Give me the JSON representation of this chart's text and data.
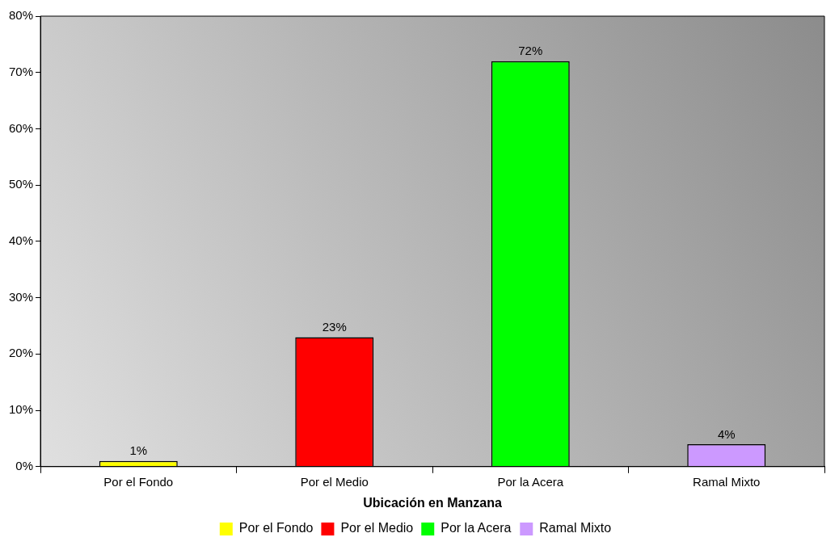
{
  "chart_data": {
    "type": "bar",
    "xlabel": "Ubicación en Manzana",
    "categories": [
      "Por el Fondo",
      "Por el Medio",
      "Por la Acera",
      "Ramal Mixto"
    ],
    "series": [
      {
        "name": "Por el Fondo",
        "color": "#ffff00",
        "values": [
          1,
          null,
          null,
          null
        ],
        "value_labels": [
          "1%",
          null,
          null,
          null
        ]
      },
      {
        "name": "Por el Medio",
        "color": "#ff0000",
        "values": [
          null,
          23,
          null,
          null
        ],
        "value_labels": [
          null,
          "23%",
          null,
          null
        ]
      },
      {
        "name": "Por la Acera",
        "color": "#00ff00",
        "values": [
          null,
          null,
          72,
          null
        ],
        "value_labels": [
          null,
          null,
          "72%",
          null
        ]
      },
      {
        "name": "Ramal Mixto",
        "color": "#cc99ff",
        "values": [
          null,
          null,
          null,
          4
        ],
        "value_labels": [
          null,
          null,
          null,
          "4%"
        ]
      }
    ],
    "ylim": [
      0,
      80
    ],
    "yticks": [
      {
        "value": 0,
        "label": "0%"
      },
      {
        "value": 10,
        "label": "10%"
      },
      {
        "value": 20,
        "label": "20%"
      },
      {
        "value": 30,
        "label": "30%"
      },
      {
        "value": 40,
        "label": "40%"
      },
      {
        "value": 50,
        "label": "50%"
      },
      {
        "value": 60,
        "label": "60%"
      },
      {
        "value": 70,
        "label": "70%"
      },
      {
        "value": 80,
        "label": "80%"
      }
    ],
    "legend": "bottom"
  }
}
